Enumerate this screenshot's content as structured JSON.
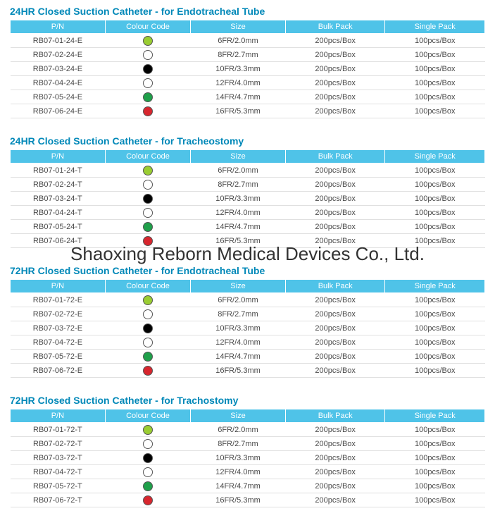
{
  "watermark": "Shaoxing Reborn Medical Devices Co., Ltd.",
  "headers": {
    "pn": "P/N",
    "cc": "Colour Code",
    "size": "Size",
    "bulk": "Bulk Pack",
    "single": "Single Pack"
  },
  "colors": {
    "header_bg": "#4fc3e8",
    "header_text": "#ffffff",
    "title_color": "#0088b8",
    "row_border": "#e0e0e0",
    "dot_border": "#555555",
    "c_limegreen": "#9acd32",
    "c_white": "#ffffff",
    "c_black": "#000000",
    "c_green": "#1fa04a",
    "c_red": "#d8262e"
  },
  "sections": [
    {
      "title": "24HR Closed Suction Catheter - for Endotracheal Tube",
      "rows": [
        {
          "pn": "RB07-01-24-E",
          "color": "c_limegreen",
          "size": "6FR/2.0mm",
          "bulk": "200pcs/Box",
          "single": "100pcs/Box"
        },
        {
          "pn": "RB07-02-24-E",
          "color": "c_white",
          "size": "8FR/2.7mm",
          "bulk": "200pcs/Box",
          "single": "100pcs/Box"
        },
        {
          "pn": "RB07-03-24-E",
          "color": "c_black",
          "size": "10FR/3.3mm",
          "bulk": "200pcs/Box",
          "single": "100pcs/Box"
        },
        {
          "pn": "RB07-04-24-E",
          "color": "c_white",
          "size": "12FR/4.0mm",
          "bulk": "200pcs/Box",
          "single": "100pcs/Box"
        },
        {
          "pn": "RB07-05-24-E",
          "color": "c_green",
          "size": "14FR/4.7mm",
          "bulk": "200pcs/Box",
          "single": "100pcs/Box"
        },
        {
          "pn": "RB07-06-24-E",
          "color": "c_red",
          "size": "16FR/5.3mm",
          "bulk": "200pcs/Box",
          "single": "100pcs/Box"
        }
      ]
    },
    {
      "title": "24HR Closed Suction Catheter - for Tracheostomy",
      "rows": [
        {
          "pn": "RB07-01-24-T",
          "color": "c_limegreen",
          "size": "6FR/2.0mm",
          "bulk": "200pcs/Box",
          "single": "100pcs/Box"
        },
        {
          "pn": "RB07-02-24-T",
          "color": "c_white",
          "size": "8FR/2.7mm",
          "bulk": "200pcs/Box",
          "single": "100pcs/Box"
        },
        {
          "pn": "RB07-03-24-T",
          "color": "c_black",
          "size": "10FR/3.3mm",
          "bulk": "200pcs/Box",
          "single": "100pcs/Box"
        },
        {
          "pn": "RB07-04-24-T",
          "color": "c_white",
          "size": "12FR/4.0mm",
          "bulk": "200pcs/Box",
          "single": "100pcs/Box"
        },
        {
          "pn": "RB07-05-24-T",
          "color": "c_green",
          "size": "14FR/4.7mm",
          "bulk": "200pcs/Box",
          "single": "100pcs/Box"
        },
        {
          "pn": "RB07-06-24-T",
          "color": "c_red",
          "size": "16FR/5.3mm",
          "bulk": "200pcs/Box",
          "single": "100pcs/Box"
        }
      ]
    },
    {
      "title": "72HR Closed Suction Catheter - for Endotracheal Tube",
      "rows": [
        {
          "pn": "RB07-01-72-E",
          "color": "c_limegreen",
          "size": "6FR/2.0mm",
          "bulk": "200pcs/Box",
          "single": "100pcs/Box"
        },
        {
          "pn": "RB07-02-72-E",
          "color": "c_white",
          "size": "8FR/2.7mm",
          "bulk": "200pcs/Box",
          "single": "100pcs/Box"
        },
        {
          "pn": "RB07-03-72-E",
          "color": "c_black",
          "size": "10FR/3.3mm",
          "bulk": "200pcs/Box",
          "single": "100pcs/Box"
        },
        {
          "pn": "RB07-04-72-E",
          "color": "c_white",
          "size": "12FR/4.0mm",
          "bulk": "200pcs/Box",
          "single": "100pcs/Box"
        },
        {
          "pn": "RB07-05-72-E",
          "color": "c_green",
          "size": "14FR/4.7mm",
          "bulk": "200pcs/Box",
          "single": "100pcs/Box"
        },
        {
          "pn": "RB07-06-72-E",
          "color": "c_red",
          "size": "16FR/5.3mm",
          "bulk": "200pcs/Box",
          "single": "100pcs/Box"
        }
      ]
    },
    {
      "title": "72HR Closed Suction Catheter - for Trachostomy",
      "rows": [
        {
          "pn": "RB07-01-72-T",
          "color": "c_limegreen",
          "size": "6FR/2.0mm",
          "bulk": "200pcs/Box",
          "single": "100pcs/Box"
        },
        {
          "pn": "RB07-02-72-T",
          "color": "c_white",
          "size": "8FR/2.7mm",
          "bulk": "200pcs/Box",
          "single": "100pcs/Box"
        },
        {
          "pn": "RB07-03-72-T",
          "color": "c_black",
          "size": "10FR/3.3mm",
          "bulk": "200pcs/Box",
          "single": "100pcs/Box"
        },
        {
          "pn": "RB07-04-72-T",
          "color": "c_white",
          "size": "12FR/4.0mm",
          "bulk": "200pcs/Box",
          "single": "100pcs/Box"
        },
        {
          "pn": "RB07-05-72-T",
          "color": "c_green",
          "size": "14FR/4.7mm",
          "bulk": "200pcs/Box",
          "single": "100pcs/Box"
        },
        {
          "pn": "RB07-06-72-T",
          "color": "c_red",
          "size": "16FR/5.3mm",
          "bulk": "200pcs/Box",
          "single": "100pcs/Box"
        }
      ]
    }
  ]
}
